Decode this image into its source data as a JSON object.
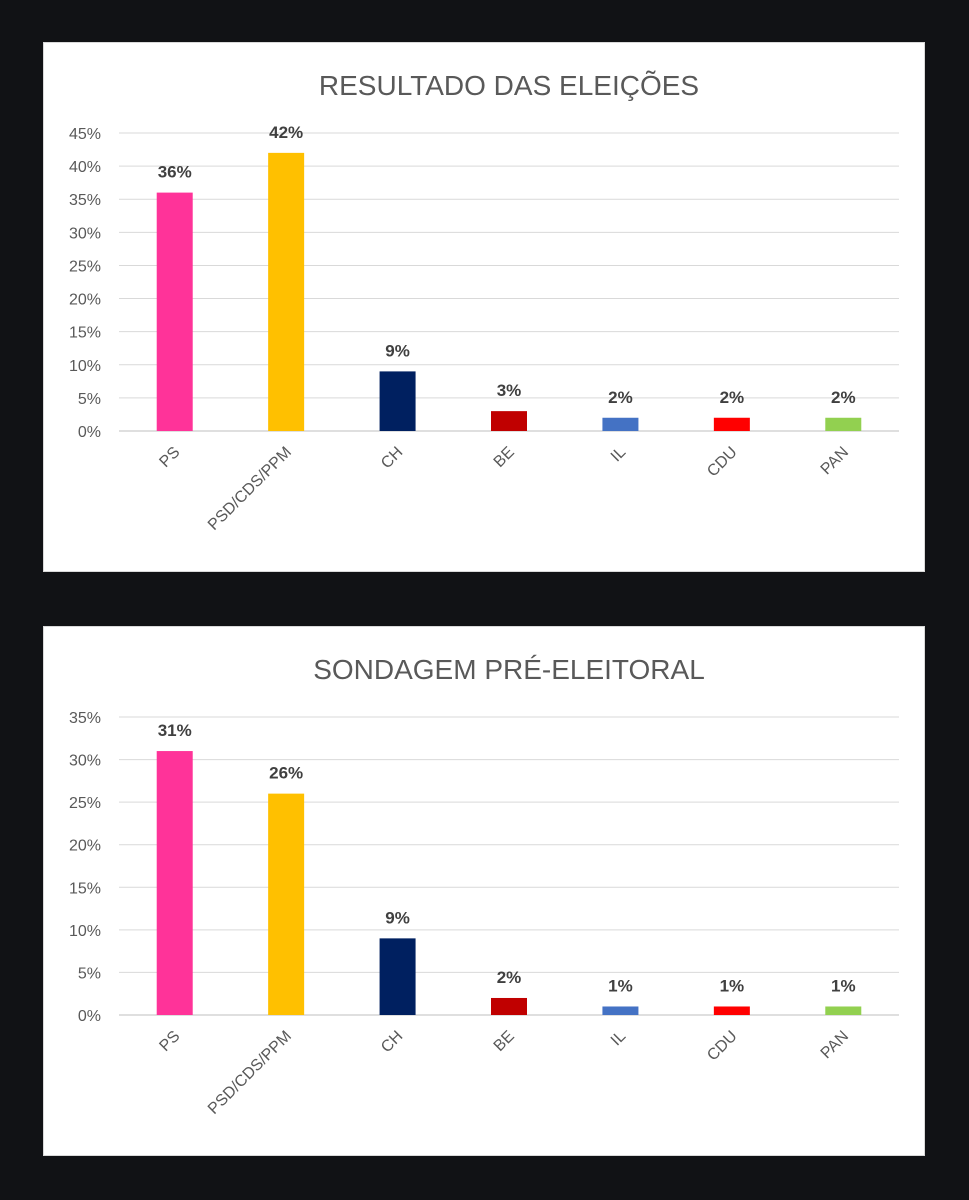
{
  "chart_data": [
    {
      "type": "bar",
      "title": "RESULTADO DAS ELEIÇÕES",
      "xlabel": "",
      "ylabel": "",
      "categories": [
        "PS",
        "PSD/CDS/PPM",
        "CH",
        "BE",
        "IL",
        "CDU",
        "PAN"
      ],
      "values": [
        36,
        42,
        9,
        3,
        2,
        2,
        2
      ],
      "data_labels": [
        "36%",
        "42%",
        "9%",
        "3%",
        "2%",
        "2%",
        "2%"
      ],
      "colors": [
        "#ff3399",
        "#ffc000",
        "#002060",
        "#c00000",
        "#4472c4",
        "#ff0000",
        "#92d050"
      ],
      "ylim": [
        0,
        45
      ],
      "yticks": [
        0,
        5,
        10,
        15,
        20,
        25,
        30,
        35,
        40,
        45
      ],
      "ytick_labels": [
        "0%",
        "5%",
        "10%",
        "15%",
        "20%",
        "25%",
        "30%",
        "35%",
        "40%",
        "45%"
      ],
      "grid": true,
      "legend": "none"
    },
    {
      "type": "bar",
      "title": "SONDAGEM PRÉ-ELEITORAL",
      "xlabel": "",
      "ylabel": "",
      "categories": [
        "PS",
        "PSD/CDS/PPM",
        "CH",
        "BE",
        "IL",
        "CDU",
        "PAN"
      ],
      "values": [
        31,
        26,
        9,
        2,
        1,
        1,
        1
      ],
      "data_labels": [
        "31%",
        "26%",
        "9%",
        "2%",
        "1%",
        "1%",
        "1%"
      ],
      "colors": [
        "#ff3399",
        "#ffc000",
        "#002060",
        "#c00000",
        "#4472c4",
        "#ff0000",
        "#92d050"
      ],
      "ylim": [
        0,
        35
      ],
      "yticks": [
        0,
        5,
        10,
        15,
        20,
        25,
        30,
        35
      ],
      "ytick_labels": [
        "0%",
        "5%",
        "10%",
        "15%",
        "20%",
        "25%",
        "30%",
        "35%"
      ],
      "grid": true,
      "legend": "none"
    }
  ]
}
